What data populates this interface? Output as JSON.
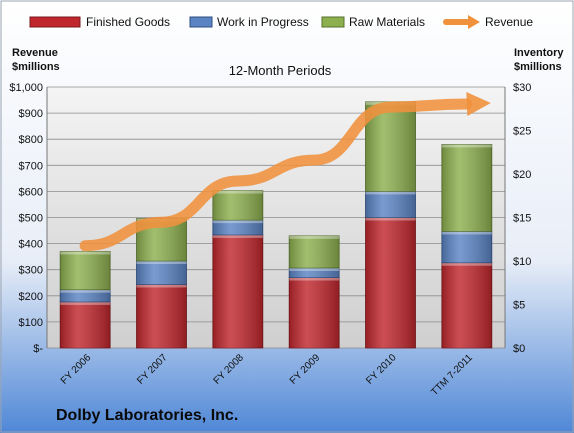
{
  "chart_data": {
    "type": "bar",
    "subtitle": "12-Month Periods",
    "company": "Dolby Laboratories, Inc.",
    "left_axis_title_line1": "Revenue",
    "left_axis_title_line2": "$millions",
    "right_axis_title_line1": "Inventory",
    "right_axis_title_line2": "$millions",
    "categories": [
      "FY 2006",
      "FY 2007",
      "FY 2008",
      "FY 2009",
      "FY 2010",
      "TTM 7-2011"
    ],
    "left_ticks": [
      "$-",
      "$100",
      "$200",
      "$300",
      "$400",
      "$500",
      "$600",
      "$700",
      "$800",
      "$900",
      "$1,000"
    ],
    "right_ticks": [
      "$0",
      "$5",
      "$10",
      "$15",
      "$20",
      "$25",
      "$30"
    ],
    "left_axis": {
      "min": 0,
      "max": 1000
    },
    "right_axis": {
      "min": 0,
      "max": 30
    },
    "stacked": true,
    "legend_position": "top",
    "series": [
      {
        "name": "Finished Goods",
        "axis": "right",
        "color": "#c0272d",
        "values": [
          5.3,
          7.3,
          13.0,
          8.1,
          15.0,
          9.8
        ]
      },
      {
        "name": "Work in Progress",
        "axis": "right",
        "color": "#5b84c4",
        "values": [
          1.4,
          2.7,
          1.7,
          1.1,
          3.0,
          3.6
        ]
      },
      {
        "name": "Raw Materials",
        "axis": "right",
        "color": "#8db04f",
        "values": [
          4.4,
          4.9,
          3.4,
          3.7,
          10.3,
          10.0
        ]
      },
      {
        "name": "Revenue",
        "axis": "left",
        "type": "line",
        "color": "#f0913c",
        "values": [
          392,
          482,
          640,
          720,
          923,
          935
        ]
      }
    ]
  }
}
